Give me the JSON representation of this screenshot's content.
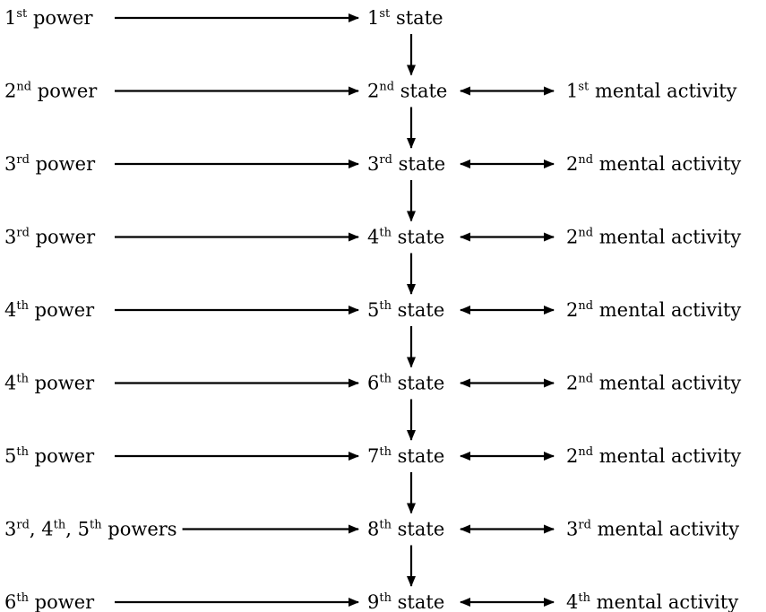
{
  "rows": [
    {
      "power": [
        {
          "t": "1"
        },
        {
          "t": "st",
          "sup": true
        },
        {
          "t": " power"
        }
      ],
      "state": [
        {
          "t": "1"
        },
        {
          "t": "st",
          "sup": true
        },
        {
          "t": " state"
        }
      ],
      "activity": null
    },
    {
      "power": [
        {
          "t": "2"
        },
        {
          "t": "nd",
          "sup": true
        },
        {
          "t": " power"
        }
      ],
      "state": [
        {
          "t": "2"
        },
        {
          "t": "nd",
          "sup": true
        },
        {
          "t": " state"
        }
      ],
      "activity": [
        {
          "t": "1"
        },
        {
          "t": "st",
          "sup": true
        },
        {
          "t": " mental activity"
        }
      ]
    },
    {
      "power": [
        {
          "t": "3"
        },
        {
          "t": "rd",
          "sup": true
        },
        {
          "t": " power"
        }
      ],
      "state": [
        {
          "t": "3"
        },
        {
          "t": "rd",
          "sup": true
        },
        {
          "t": " state"
        }
      ],
      "activity": [
        {
          "t": "2"
        },
        {
          "t": "nd",
          "sup": true
        },
        {
          "t": " mental activity"
        }
      ]
    },
    {
      "power": [
        {
          "t": "3"
        },
        {
          "t": "rd",
          "sup": true
        },
        {
          "t": " power"
        }
      ],
      "state": [
        {
          "t": "4"
        },
        {
          "t": "th",
          "sup": true
        },
        {
          "t": " state"
        }
      ],
      "activity": [
        {
          "t": "2"
        },
        {
          "t": "nd",
          "sup": true
        },
        {
          "t": " mental activity"
        }
      ]
    },
    {
      "power": [
        {
          "t": "4"
        },
        {
          "t": "th",
          "sup": true
        },
        {
          "t": " power"
        }
      ],
      "state": [
        {
          "t": "5"
        },
        {
          "t": "th",
          "sup": true
        },
        {
          "t": " state"
        }
      ],
      "activity": [
        {
          "t": "2"
        },
        {
          "t": "nd",
          "sup": true
        },
        {
          "t": " mental activity"
        }
      ]
    },
    {
      "power": [
        {
          "t": "4"
        },
        {
          "t": "th",
          "sup": true
        },
        {
          "t": " power"
        }
      ],
      "state": [
        {
          "t": "6"
        },
        {
          "t": "th",
          "sup": true
        },
        {
          "t": " state"
        }
      ],
      "activity": [
        {
          "t": "2"
        },
        {
          "t": "nd",
          "sup": true
        },
        {
          "t": " mental activity"
        }
      ]
    },
    {
      "power": [
        {
          "t": "5"
        },
        {
          "t": "th",
          "sup": true
        },
        {
          "t": " power"
        }
      ],
      "state": [
        {
          "t": "7"
        },
        {
          "t": "th",
          "sup": true
        },
        {
          "t": " state"
        }
      ],
      "activity": [
        {
          "t": "2"
        },
        {
          "t": "nd",
          "sup": true
        },
        {
          "t": " mental activity"
        }
      ]
    },
    {
      "power": [
        {
          "t": "3"
        },
        {
          "t": "rd",
          "sup": true
        },
        {
          "t": ", 4"
        },
        {
          "t": "th",
          "sup": true
        },
        {
          "t": ", 5"
        },
        {
          "t": "th",
          "sup": true
        },
        {
          "t": " powers"
        }
      ],
      "state": [
        {
          "t": "8"
        },
        {
          "t": "th",
          "sup": true
        },
        {
          "t": " state"
        }
      ],
      "activity": [
        {
          "t": "3"
        },
        {
          "t": "rd",
          "sup": true
        },
        {
          "t": " mental activity"
        }
      ]
    },
    {
      "power": [
        {
          "t": "6"
        },
        {
          "t": "th",
          "sup": true
        },
        {
          "t": " power"
        }
      ],
      "state": [
        {
          "t": "9"
        },
        {
          "t": "th",
          "sup": true
        },
        {
          "t": " state"
        }
      ],
      "activity": [
        {
          "t": "4"
        },
        {
          "t": "th",
          "sup": true
        },
        {
          "t": " mental activity"
        }
      ]
    }
  ],
  "colors": {
    "ink": "#000000",
    "background": "#ffffff"
  }
}
